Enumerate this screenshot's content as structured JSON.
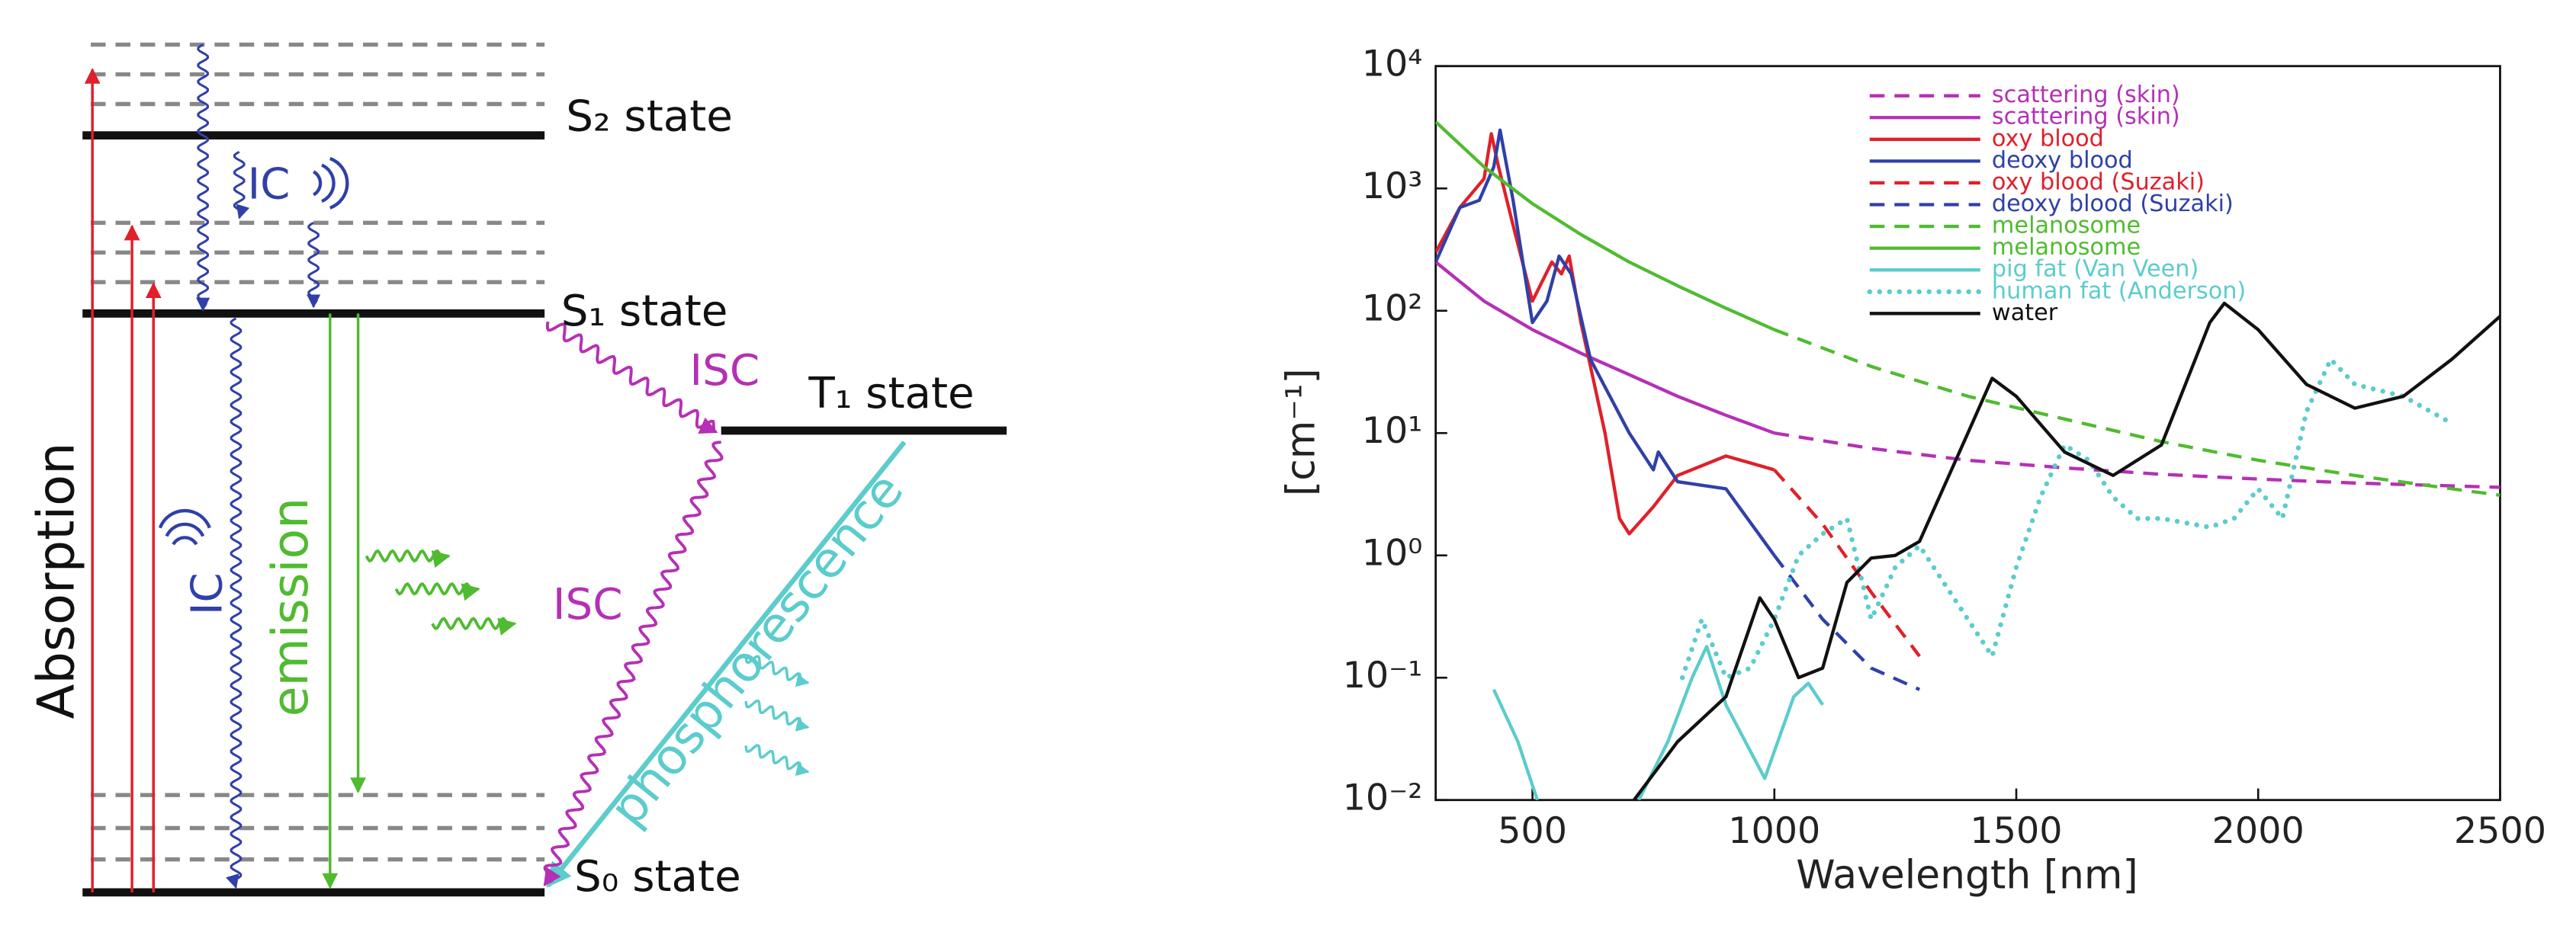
{
  "diagram": {
    "s2": "S₂ state",
    "s1": "S₁ state",
    "t1": "T₁ state",
    "s0": "S₀ state",
    "ic_top": "IC",
    "ic_side": "IC",
    "isc_top": "ISC",
    "isc_side": "ISC",
    "absorption": "Absorption",
    "emission": "emission",
    "phosphorescence": "phosphorescence"
  },
  "chart_data": {
    "type": "line",
    "xlabel": "Wavelength [nm]",
    "ylabel": "[cm⁻¹]",
    "xlim": [
      300,
      2500
    ],
    "ylim": [
      0.01,
      10000
    ],
    "log_y": true,
    "xticks": [
      500,
      1000,
      1500,
      2000,
      2500
    ],
    "yticks": [
      {
        "value": 0.01,
        "label": "10⁻²"
      },
      {
        "value": 0.1,
        "label": "10⁻¹"
      },
      {
        "value": 1,
        "label": "10⁰"
      },
      {
        "value": 10,
        "label": "10¹"
      },
      {
        "value": 100,
        "label": "10²"
      },
      {
        "value": 1000,
        "label": "10³"
      },
      {
        "value": 10000,
        "label": "10⁴"
      }
    ],
    "legend": "top",
    "series": [
      {
        "name": "scattering (skin)",
        "color": "#b530b5",
        "style": "dashed",
        "x": [
          1000,
          1200,
          1400,
          1600,
          1800,
          2000,
          2200,
          2500
        ],
        "values": [
          10,
          7.5,
          6,
          5.2,
          4.6,
          4.2,
          3.9,
          3.6
        ]
      },
      {
        "name": "scattering (skin)",
        "color": "#b530b5",
        "style": "solid",
        "x": [
          300,
          400,
          500,
          600,
          700,
          800,
          900,
          1000
        ],
        "values": [
          250,
          120,
          70,
          45,
          30,
          20,
          14,
          10
        ]
      },
      {
        "name": "oxy blood",
        "color": "#e0202a",
        "style": "solid",
        "x": [
          300,
          350,
          400,
          415,
          430,
          460,
          500,
          540,
          560,
          576,
          600,
          650,
          680,
          700,
          750,
          800,
          900,
          1000
        ],
        "values": [
          300,
          700,
          1200,
          2800,
          1500,
          500,
          120,
          250,
          200,
          280,
          80,
          10,
          2,
          1.5,
          2.5,
          4.5,
          6.5,
          5
        ]
      },
      {
        "name": "deoxy blood",
        "color": "#3040a8",
        "style": "solid",
        "x": [
          300,
          350,
          390,
          420,
          433,
          460,
          500,
          530,
          555,
          580,
          620,
          700,
          750,
          760,
          800,
          900,
          1000
        ],
        "values": [
          250,
          700,
          800,
          1500,
          3000,
          800,
          80,
          120,
          280,
          200,
          40,
          10,
          5,
          7,
          4,
          3.5,
          1
        ]
      },
      {
        "name": "oxy blood (Suzaki)",
        "color": "#e0202a",
        "style": "dashed",
        "x": [
          1000,
          1100,
          1200,
          1300
        ],
        "values": [
          5,
          1.8,
          0.5,
          0.15
        ]
      },
      {
        "name": "deoxy blood (Suzaki)",
        "color": "#3040a8",
        "style": "dashed",
        "x": [
          1000,
          1100,
          1200,
          1300
        ],
        "values": [
          1,
          0.3,
          0.12,
          0.08
        ]
      },
      {
        "name": "melanosome",
        "color": "#50bb30",
        "style": "dashed",
        "x": [
          1000,
          1200,
          1400,
          1600,
          1800,
          2000,
          2200,
          2400,
          2500
        ],
        "values": [
          70,
          35,
          20,
          13,
          8.5,
          6,
          4.5,
          3.5,
          3.1
        ]
      },
      {
        "name": "melanosome",
        "color": "#50bb30",
        "style": "solid",
        "x": [
          300,
          400,
          500,
          600,
          700,
          800,
          900,
          1000
        ],
        "values": [
          3500,
          1500,
          750,
          420,
          250,
          160,
          105,
          70
        ]
      },
      {
        "name": "pig fat (Van Veen)",
        "color": "#5ccccc",
        "style": "solid",
        "x": [
          420,
          470,
          510,
          600,
          720,
          780,
          830,
          860,
          900,
          980,
          1040,
          1070,
          1100
        ],
        "values": [
          0.08,
          0.03,
          0.01,
          null,
          0.01,
          0.03,
          0.1,
          0.18,
          0.06,
          0.015,
          0.07,
          0.09,
          0.06
        ]
      },
      {
        "name": "human fat (Anderson)",
        "color": "#5ccccc",
        "style": "dotted",
        "x": [
          810,
          850,
          900,
          950,
          1000,
          1050,
          1100,
          1150,
          1200,
          1250,
          1300,
          1350,
          1400,
          1450,
          1500,
          1550,
          1600,
          1650,
          1700,
          1750,
          1800,
          1900,
          1950,
          2000,
          2050,
          2100,
          2150,
          2200,
          2300,
          2400
        ],
        "values": [
          0.1,
          0.3,
          0.1,
          0.12,
          0.3,
          1,
          1.5,
          2,
          0.3,
          0.8,
          1.2,
          0.6,
          0.3,
          0.15,
          0.8,
          3,
          8,
          6,
          3,
          2,
          2,
          1.7,
          2,
          3.5,
          2,
          15,
          40,
          25,
          20,
          12
        ]
      },
      {
        "name": "water",
        "color": "#111111",
        "style": "solid",
        "x": [
          710,
          800,
          900,
          970,
          1000,
          1050,
          1100,
          1150,
          1200,
          1250,
          1300,
          1400,
          1450,
          1500,
          1600,
          1700,
          1800,
          1900,
          1930,
          2000,
          2100,
          2200,
          2300,
          2400,
          2500
        ],
        "values": [
          0.01,
          0.03,
          0.07,
          0.45,
          0.3,
          0.1,
          0.12,
          0.6,
          0.95,
          1,
          1.3,
          10,
          28,
          20,
          7,
          4.5,
          8,
          80,
          115,
          70,
          25,
          16,
          20,
          40,
          90
        ]
      }
    ]
  }
}
